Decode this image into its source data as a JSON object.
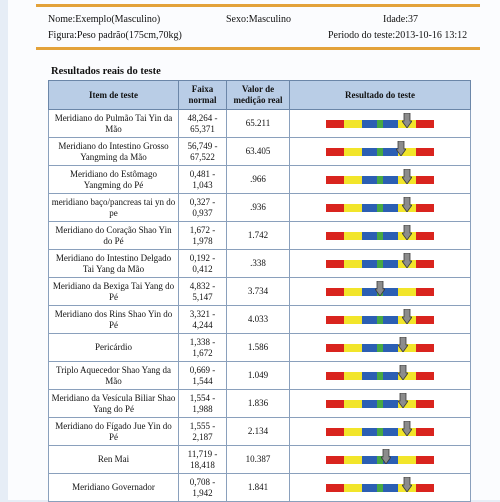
{
  "header": {
    "name": "Nome:Exemplo(Masculino)",
    "sex": "Sexo:Masculino",
    "age": "Idade:37",
    "figure": "Figura:Peso padrão(175cm,70kg)",
    "period": "Periodo do teste:2013-10-16 13:12"
  },
  "section_title": "Resultados reais do teste",
  "columns": {
    "item": "Item de teste",
    "range": "Faixa normal",
    "value": "Valor de medição real",
    "result": "Resultado do teste"
  },
  "scale_colors": {
    "red": "#d9241e",
    "yellow": "#f2e52a",
    "blue": "#2c5fb3",
    "green": "#48a843"
  },
  "rows": [
    {
      "item": "Meridiano do Pulmão Tai Yin da Mão",
      "range": "48,264 - 65,371",
      "value": "65.211",
      "level": 0.75
    },
    {
      "item": "Meridiano do Intestino Grosso Yangming da Mão",
      "range": "56,749 - 67,522",
      "value": "63.405",
      "level": 0.69
    },
    {
      "item": "Meridiano do Estômago Yangming do Pé",
      "range": "0,481 - 1,043",
      "value": ".966",
      "level": 0.75
    },
    {
      "item": "meridiano baço/pancreas tai yn do pe",
      "range": "0,327 - 0,937",
      "value": ".936",
      "level": 0.75
    },
    {
      "item": "Meridiano do Coração Shao Yin do Pé",
      "range": "1,672 - 1,978",
      "value": "1.742",
      "level": 0.75
    },
    {
      "item": "Meridiano do Intestino Delgado Tai Yang da Mão",
      "range": "0,192 - 0,412",
      "value": ".338",
      "level": 0.75
    },
    {
      "item": "Meridiano da Bexiga Tai Yang do Pé",
      "range": "4,832 - 5,147",
      "value": "3.734",
      "level": 0.5
    },
    {
      "item": "Meridiano dos Rins Shao Yin do Pé",
      "range": "3,321 - 4,244",
      "value": "4.033",
      "level": 0.75
    },
    {
      "item": "Pericárdio",
      "range": "1,338 - 1,672",
      "value": "1.586",
      "level": 0.71
    },
    {
      "item": "Triplo Aquecedor Shao Yang da Mão",
      "range": "0,669 - 1,544",
      "value": "1.049",
      "level": 0.71
    },
    {
      "item": "Meridiano da Vesícula Biliar Shao Yang do Pé",
      "range": "1,554 - 1,988",
      "value": "1.836",
      "level": 0.71
    },
    {
      "item": "Meridiano do Fígado Jue Yin do Pé",
      "range": "1,555 - 2,187",
      "value": "2.134",
      "level": 0.75
    },
    {
      "item": "Ren Mai",
      "range": "11,719 - 18,418",
      "value": "10.387",
      "level": 0.56
    },
    {
      "item": "Meridiano Governador",
      "range": "0,708 - 1,942",
      "value": "1.841",
      "level": 0.75
    }
  ]
}
